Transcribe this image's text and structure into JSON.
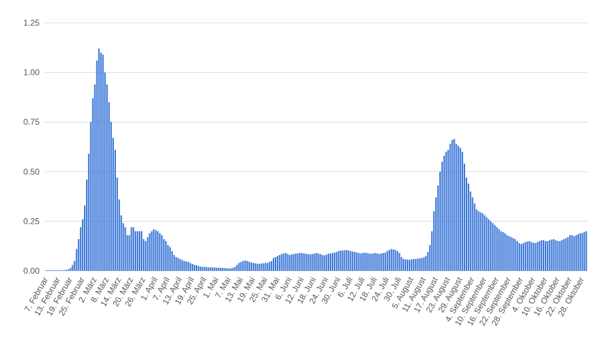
{
  "chart_data": {
    "type": "bar",
    "color": "#3c78d8",
    "grid": true,
    "ylim": [
      0,
      1.25
    ],
    "yticks": [
      {
        "value": 0,
        "label": "0.00"
      },
      {
        "value": 0.25,
        "label": "0.25"
      },
      {
        "value": 0.5,
        "label": "0.50"
      },
      {
        "value": 0.75,
        "label": "0.75"
      },
      {
        "value": 1,
        "label": "1.00"
      },
      {
        "value": 1.25,
        "label": "1.25"
      }
    ],
    "categories": [
      "7. Februar",
      null,
      null,
      null,
      null,
      null,
      "13. Februar",
      null,
      null,
      null,
      null,
      null,
      "19. Februar",
      null,
      null,
      null,
      null,
      null,
      "25. Februar",
      null,
      null,
      null,
      null,
      null,
      "2. März",
      null,
      null,
      null,
      null,
      null,
      "8. März",
      null,
      null,
      null,
      null,
      null,
      "14. März",
      null,
      null,
      null,
      null,
      null,
      "20. März",
      null,
      null,
      null,
      null,
      null,
      "26. März",
      null,
      null,
      null,
      null,
      null,
      "1. April",
      null,
      null,
      null,
      null,
      null,
      "7. April",
      null,
      null,
      null,
      null,
      null,
      "13. April",
      null,
      null,
      null,
      null,
      null,
      "19. April",
      null,
      null,
      null,
      null,
      null,
      "25. April",
      null,
      null,
      null,
      null,
      null,
      "1. Mai",
      null,
      null,
      null,
      null,
      null,
      "7. Mai",
      null,
      null,
      null,
      null,
      null,
      "13. Mai",
      null,
      null,
      null,
      null,
      null,
      "19. Mai",
      null,
      null,
      null,
      null,
      null,
      "25. Mai",
      null,
      null,
      null,
      null,
      null,
      "31. Mai",
      null,
      null,
      null,
      null,
      null,
      "6. Juni",
      null,
      null,
      null,
      null,
      null,
      "12. Juni",
      null,
      null,
      null,
      null,
      null,
      "18. Juni",
      null,
      null,
      null,
      null,
      null,
      "24. Juni",
      null,
      null,
      null,
      null,
      null,
      "30. Juni",
      null,
      null,
      null,
      null,
      null,
      "6. Juli",
      null,
      null,
      null,
      null,
      null,
      "12. Juli",
      null,
      null,
      null,
      null,
      null,
      "18. Juli",
      null,
      null,
      null,
      null,
      null,
      "24. Juli",
      null,
      null,
      null,
      null,
      null,
      "30. Juli",
      null,
      null,
      null,
      null,
      null,
      "5. August",
      null,
      null,
      null,
      null,
      null,
      "11. August",
      null,
      null,
      null,
      null,
      null,
      "17. August",
      null,
      null,
      null,
      null,
      null,
      "23. August",
      null,
      null,
      null,
      null,
      null,
      "29. August",
      null,
      null,
      null,
      null,
      null,
      "4. September",
      null,
      null,
      null,
      null,
      null,
      "10. September",
      null,
      null,
      null,
      null,
      null,
      "16. September",
      null,
      null,
      null,
      null,
      null,
      "22. September",
      null,
      null,
      null,
      null,
      null,
      "28. September",
      null,
      null,
      null,
      null,
      null,
      "4. Oktober",
      null,
      null,
      null,
      null,
      null,
      "10. Oktober",
      null,
      null,
      null,
      null,
      null,
      "16. Oktober",
      null,
      null,
      null,
      null,
      null,
      "22. Oktober",
      null,
      null,
      null,
      null,
      null,
      "28. Oktober",
      null,
      null
    ],
    "values": [
      0.003,
      0.003,
      0.003,
      0.003,
      0.003,
      0.003,
      0.003,
      0.003,
      0.003,
      0.004,
      0.005,
      0.008,
      0.015,
      0.03,
      0.05,
      0.11,
      0.16,
      0.22,
      0.26,
      0.33,
      0.46,
      0.59,
      0.75,
      0.87,
      0.94,
      1.06,
      1.12,
      1.1,
      1.09,
      1.0,
      0.94,
      0.85,
      0.75,
      0.67,
      0.61,
      0.47,
      0.36,
      0.28,
      0.24,
      0.22,
      0.18,
      0.18,
      0.22,
      0.22,
      0.2,
      0.2,
      0.2,
      0.2,
      0.16,
      0.15,
      0.17,
      0.19,
      0.2,
      0.21,
      0.205,
      0.2,
      0.19,
      0.18,
      0.16,
      0.15,
      0.13,
      0.12,
      0.1,
      0.08,
      0.07,
      0.065,
      0.06,
      0.055,
      0.05,
      0.048,
      0.045,
      0.04,
      0.035,
      0.03,
      0.028,
      0.025,
      0.022,
      0.02,
      0.02,
      0.019,
      0.018,
      0.018,
      0.017,
      0.017,
      0.016,
      0.016,
      0.015,
      0.015,
      0.014,
      0.013,
      0.012,
      0.012,
      0.015,
      0.02,
      0.03,
      0.04,
      0.045,
      0.05,
      0.052,
      0.05,
      0.046,
      0.042,
      0.04,
      0.038,
      0.036,
      0.036,
      0.037,
      0.038,
      0.04,
      0.04,
      0.045,
      0.05,
      0.065,
      0.07,
      0.075,
      0.08,
      0.085,
      0.088,
      0.09,
      0.085,
      0.08,
      0.083,
      0.085,
      0.087,
      0.088,
      0.09,
      0.09,
      0.088,
      0.086,
      0.085,
      0.083,
      0.085,
      0.087,
      0.09,
      0.088,
      0.085,
      0.08,
      0.078,
      0.082,
      0.086,
      0.088,
      0.09,
      0.092,
      0.095,
      0.1,
      0.102,
      0.103,
      0.104,
      0.105,
      0.103,
      0.1,
      0.097,
      0.095,
      0.093,
      0.09,
      0.088,
      0.09,
      0.092,
      0.09,
      0.088,
      0.086,
      0.088,
      0.09,
      0.088,
      0.085,
      0.088,
      0.09,
      0.092,
      0.1,
      0.105,
      0.11,
      0.108,
      0.105,
      0.1,
      0.09,
      0.07,
      0.06,
      0.058,
      0.057,
      0.056,
      0.058,
      0.06,
      0.06,
      0.062,
      0.063,
      0.065,
      0.068,
      0.075,
      0.095,
      0.13,
      0.2,
      0.3,
      0.37,
      0.43,
      0.5,
      0.55,
      0.58,
      0.6,
      0.61,
      0.64,
      0.66,
      0.665,
      0.64,
      0.63,
      0.62,
      0.6,
      0.54,
      0.47,
      0.44,
      0.4,
      0.37,
      0.34,
      0.31,
      0.3,
      0.295,
      0.29,
      0.28,
      0.27,
      0.26,
      0.25,
      0.24,
      0.23,
      0.22,
      0.21,
      0.2,
      0.195,
      0.19,
      0.18,
      0.175,
      0.17,
      0.165,
      0.16,
      0.15,
      0.14,
      0.135,
      0.14,
      0.145,
      0.148,
      0.15,
      0.145,
      0.142,
      0.14,
      0.145,
      0.15,
      0.155,
      0.155,
      0.15,
      0.15,
      0.155,
      0.158,
      0.16,
      0.155,
      0.15,
      0.15,
      0.155,
      0.16,
      0.165,
      0.17,
      0.18,
      0.18,
      0.175,
      0.18,
      0.185,
      0.19,
      0.19,
      0.195,
      0.2
    ]
  }
}
